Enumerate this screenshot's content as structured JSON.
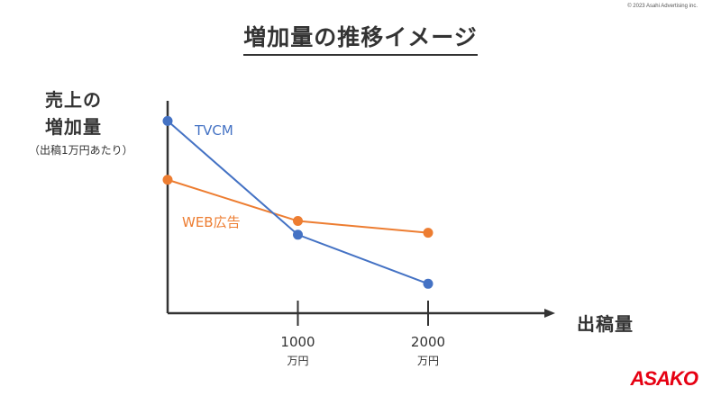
{
  "copyright": "© 2023 Asahi Advertising inc.",
  "title": "増加量の推移イメージ",
  "logo": "ASAKO",
  "colors": {
    "tvcm": "#4472c4",
    "web": "#ed7d31",
    "axis": "#333333"
  },
  "chart_data": {
    "type": "line",
    "title": "増加量の推移イメージ",
    "ylabel": [
      "売上の",
      "増加量",
      "（出稿1万円あたり）"
    ],
    "xlabel": "出稿量",
    "x": [
      0,
      1000,
      2000
    ],
    "x_ticks": [
      {
        "value": 1000,
        "label": "1000",
        "unit": "万円"
      },
      {
        "value": 2000,
        "label": "2000",
        "unit": "万円"
      }
    ],
    "xlim": [
      0,
      3000
    ],
    "ylim": [
      0,
      100
    ],
    "grid": false,
    "legend": "inline labels",
    "series": [
      {
        "name": "TVCM",
        "values": [
          98,
          40,
          15
        ]
      },
      {
        "name": "WEB広告",
        "values": [
          68,
          47,
          41
        ]
      }
    ]
  }
}
